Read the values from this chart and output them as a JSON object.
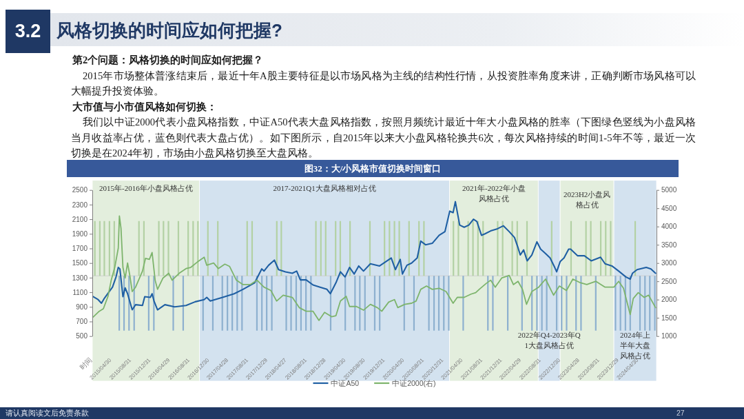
{
  "chart_data": {
    "type": "line",
    "title": "图32：大/小风格市值切换时间窗口",
    "annotations": [
      "3.2",
      "风格切换的时间应如何把握?",
      "第2个问题：风格切换的时间应如何把握？",
      "2015年市场整体普涨结束后，最近十年A股主要特征是以市场风格为主线的结构性行情，从投资胜率角度来讲，正确判断市场风格可以大幅提升投资体验。",
      "大市值与小市值风格如何切换：",
      "我们以中证2000代表小盘风格指数，中证A50代表大盘风格指数，按照月频统计最近十年大小盘风格的胜率（下图绿色竖线为小盘风格当月收益率占优，蓝色则代表大盘占优）。如下图所示，自2015年以来大小盘风格轮换共6次，每次风格持续的时间1-5年不等，最近一次切换是在2024年初，市场由小盘风格切换至大盘风格。",
      "请认真阅读文后免责条款",
      "27"
    ],
    "xlim": [
      "2014-12-31",
      "2024-08-20"
    ],
    "xticks": [
      {
        "value": "2014-12-31",
        "label": "时间"
      },
      {
        "value": "2015-04-30",
        "label": "2015/04/30"
      },
      {
        "value": "2015-08-31",
        "label": "2015/08/31"
      },
      {
        "value": "2015-12-31",
        "label": "2015/12/31"
      },
      {
        "value": "2016-04-29",
        "label": "2016/04/29"
      },
      {
        "value": "2016-08-31",
        "label": "2016/08/31"
      },
      {
        "value": "2016-12-30",
        "label": "2016/12/30"
      },
      {
        "value": "2017-04-28",
        "label": "2017/04/28"
      },
      {
        "value": "2017-08-31",
        "label": "2017/08/31"
      },
      {
        "value": "2017-12-29",
        "label": "2017/12/29"
      },
      {
        "value": "2018-04-27",
        "label": "2018/04/27"
      },
      {
        "value": "2018-08-31",
        "label": "2018/08/31"
      },
      {
        "value": "2018-12-28",
        "label": "2018/12/28"
      },
      {
        "value": "2019-04-30",
        "label": "2019/04/30"
      },
      {
        "value": "2019-08-30",
        "label": "2019/08/30"
      },
      {
        "value": "2019-12-31",
        "label": "2019/12/31"
      },
      {
        "value": "2020-04-30",
        "label": "2020/04/30"
      },
      {
        "value": "2020-08-31",
        "label": "2020/08/31"
      },
      {
        "value": "2020-12-31",
        "label": "2020/12/31"
      },
      {
        "value": "2021-04-30",
        "label": "2021/04/30"
      },
      {
        "value": "2021-08-31",
        "label": "2021/08/31"
      },
      {
        "value": "2021-12-31",
        "label": "2021/12/31"
      },
      {
        "value": "2022-04-29",
        "label": "2022/04/29"
      },
      {
        "value": "2022-08-31",
        "label": "2022/08/31"
      },
      {
        "value": "2022-12-30",
        "label": "2022/12/30"
      },
      {
        "value": "2023-04-28",
        "label": "2023/04/28"
      },
      {
        "value": "2023-08-31",
        "label": "2023/08/31"
      },
      {
        "value": "2023-12-29",
        "label": "2023/12/29"
      },
      {
        "value": "2024-04-30",
        "label": "2024/04/30"
      }
    ],
    "ylim": [
      500,
      2500
    ],
    "yticks": [
      500,
      700,
      900,
      1100,
      1300,
      1500,
      1700,
      1900,
      2100,
      2300,
      2500
    ],
    "y2lim": [
      1000,
      5000
    ],
    "y2ticks": [
      1000,
      1500,
      2000,
      2500,
      3000,
      3500,
      4000,
      4500,
      5000
    ],
    "legend": "bottom",
    "bands": [
      {
        "axis": "x",
        "from": "2014-12-31",
        "to": "2016-10-30",
        "label": "2015年-2016年小盘风格占优",
        "color": "#e3eedd"
      },
      {
        "axis": "x",
        "from": "2016-10-30",
        "to": "2021-02-06",
        "label": "2017-2021Q1大盘风格相对占优",
        "color": "#d3e2ef"
      },
      {
        "axis": "x",
        "from": "2021-02-06",
        "to": "2022-08-13",
        "label": "2021年-2022年小盘风格占优",
        "color": "#e3eedd"
      },
      {
        "axis": "x",
        "from": "2022-08-13",
        "to": "2022-12-28",
        "label": "2022年Q4-2023年Q1大盘风格占优",
        "color": "#d3e2ef"
      },
      {
        "axis": "x",
        "from": "2022-12-28",
        "to": "2023-11-28",
        "label": "2023H2小盘风格占优",
        "color": "#e3eedd"
      },
      {
        "axis": "x",
        "from": "2023-11-28",
        "to": "2024-08-20",
        "label": "2024年上半年大盘风格占优",
        "color": "#d3e2ef"
      }
    ],
    "ref_lines": [
      {
        "axis": "y",
        "value": 1325,
        "color": "#cfcfcf"
      }
    ],
    "series": [
      {
        "name": "中证A50",
        "color": "#1f5fa3",
        "axis": "y",
        "x": [
          "2015-01-05",
          "2015-02-05",
          "2015-02-26",
          "2015-03-17",
          "2015-05-06",
          "2015-05-28",
          "2015-06-11",
          "2015-06-21",
          "2015-07-10",
          "2015-07-24",
          "2015-08-08",
          "2015-09-06",
          "2015-09-27",
          "2015-11-09",
          "2015-11-23",
          "2015-12-28",
          "2016-01-08",
          "2016-01-20",
          "2016-02-11",
          "2016-03-28",
          "2016-05-27",
          "2016-08-07",
          "2016-10-03",
          "2016-11-28",
          "2016-12-14",
          "2017-01-05",
          "2017-03-23",
          "2017-06-03",
          "2017-07-28",
          "2017-10-09",
          "2017-11-22",
          "2017-12-06",
          "2018-01-04",
          "2018-02-09",
          "2018-03-07",
          "2018-04-19",
          "2018-06-01",
          "2018-06-28",
          "2018-07-21",
          "2018-08-26",
          "2018-10-08",
          "2018-11-21",
          "2019-01-03",
          "2019-01-24",
          "2019-02-28",
          "2019-03-28",
          "2019-04-26",
          "2019-05-24",
          "2019-06-22",
          "2019-07-20",
          "2019-08-19",
          "2019-10-01",
          "2019-11-27",
          "2020-02-08",
          "2020-03-05",
          "2020-04-04",
          "2020-04-18",
          "2020-05-16",
          "2020-06-14",
          "2020-07-19",
          "2020-08-10",
          "2020-09-09",
          "2020-10-21",
          "2020-12-03",
          "2021-01-08",
          "2021-02-07",
          "2021-02-28",
          "2021-03-14",
          "2021-04-10",
          "2021-05-08",
          "2021-06-06",
          "2021-07-05",
          "2021-07-26",
          "2021-08-24",
          "2021-09-15",
          "2021-10-20",
          "2021-12-02",
          "2022-01-08",
          "2022-02-13",
          "2022-03-18",
          "2022-04-09",
          "2022-04-23",
          "2022-05-14",
          "2022-06-05",
          "2022-07-04",
          "2022-08-05",
          "2022-08-28",
          "2022-09-28",
          "2022-10-26",
          "2022-11-24",
          "2022-12-06",
          "2022-12-28",
          "2023-01-21",
          "2023-02-19",
          "2023-03-03",
          "2023-04-15",
          "2023-05-28",
          "2023-07-10",
          "2023-09-06",
          "2023-10-04",
          "2023-11-16",
          "2023-12-28",
          "2024-02-11",
          "2024-03-09",
          "2024-03-23",
          "2024-04-21",
          "2024-06-17",
          "2024-07-16",
          "2024-08-14"
        ],
        "values": [
          1040,
          1000,
          950,
          1020,
          1170,
          1310,
          1440,
          1420,
          1040,
          1160,
          1080,
          860,
          930,
          920,
          1040,
          1030,
          1080,
          980,
          860,
          930,
          900,
          920,
          970,
          1000,
          1030,
          980,
          1030,
          1080,
          1140,
          1230,
          1420,
          1390,
          1470,
          1540,
          1410,
          1380,
          1360,
          1390,
          1270,
          1270,
          1200,
          1170,
          1140,
          1080,
          1230,
          1380,
          1310,
          1440,
          1350,
          1460,
          1390,
          1490,
          1460,
          1570,
          1410,
          1550,
          1350,
          1470,
          1500,
          1570,
          1800,
          1750,
          1770,
          1880,
          1930,
          2210,
          2190,
          2340,
          2020,
          1990,
          2020,
          2100,
          2070,
          1880,
          1900,
          1940,
          1970,
          2010,
          1930,
          1850,
          1710,
          1610,
          1680,
          1530,
          1610,
          1790,
          1690,
          1630,
          1570,
          1440,
          1380,
          1520,
          1570,
          1690,
          1690,
          1600,
          1600,
          1530,
          1580,
          1490,
          1460,
          1390,
          1310,
          1280,
          1360,
          1410,
          1440,
          1420,
          1360
        ]
      },
      {
        "name": "中证2000(右)",
        "color": "#7db46c",
        "axis": "y2",
        "x": [
          "2015-01-05",
          "2015-02-12",
          "2015-03-10",
          "2015-04-08",
          "2015-04-28",
          "2015-05-20",
          "2015-06-11",
          "2015-06-18",
          "2015-06-28",
          "2015-07-10",
          "2015-07-24",
          "2015-08-08",
          "2015-08-22",
          "2015-09-06",
          "2015-09-27",
          "2015-11-09",
          "2015-11-28",
          "2015-12-22",
          "2016-01-08",
          "2016-01-27",
          "2016-02-11",
          "2016-03-16",
          "2016-04-21",
          "2016-05-12",
          "2016-06-25",
          "2016-08-07",
          "2016-09-05",
          "2016-10-17",
          "2016-11-28",
          "2016-12-14",
          "2017-01-26",
          "2017-02-24",
          "2017-04-06",
          "2017-05-05",
          "2017-06-17",
          "2017-07-28",
          "2017-09-11",
          "2017-10-24",
          "2017-12-06",
          "2018-01-18",
          "2018-02-23",
          "2018-04-05",
          "2018-06-01",
          "2018-07-14",
          "2018-08-26",
          "2018-10-08",
          "2018-11-14",
          "2018-12-19",
          "2019-02-01",
          "2019-02-28",
          "2019-03-28",
          "2019-05-03",
          "2019-05-24",
          "2019-07-06",
          "2019-08-19",
          "2019-10-01",
          "2019-11-13",
          "2019-12-11",
          "2020-01-23",
          "2020-02-28",
          "2020-03-20",
          "2020-05-02",
          "2020-06-14",
          "2020-07-12",
          "2020-08-10",
          "2020-09-15",
          "2020-10-21",
          "2020-12-03",
          "2021-01-15",
          "2021-02-28",
          "2021-03-26",
          "2021-05-08",
          "2021-06-20",
          "2021-07-19",
          "2021-08-10",
          "2021-09-22",
          "2021-10-20",
          "2021-11-18",
          "2021-12-28",
          "2022-02-13",
          "2022-03-11",
          "2022-04-09",
          "2022-05-07",
          "2022-06-01",
          "2022-07-04",
          "2022-08-16",
          "2022-09-28",
          "2022-10-26",
          "2022-11-17",
          "2022-12-23",
          "2023-02-05",
          "2023-03-17",
          "2023-04-28",
          "2023-06-12",
          "2023-08-08",
          "2023-10-04",
          "2023-11-28",
          "2023-12-28",
          "2024-01-27",
          "2024-03-09",
          "2024-03-28",
          "2024-04-28",
          "2024-06-04",
          "2024-07-02",
          "2024-08-14"
        ],
        "values": [
          1520,
          1680,
          1750,
          2090,
          2530,
          2880,
          3410,
          4290,
          3950,
          2880,
          2590,
          3000,
          2660,
          2220,
          2340,
          2780,
          3130,
          3100,
          3290,
          2530,
          2280,
          2590,
          2720,
          2530,
          2720,
          2850,
          2880,
          3030,
          3160,
          2940,
          3000,
          2850,
          2970,
          2910,
          2530,
          2410,
          2410,
          2530,
          2340,
          2250,
          1960,
          2120,
          2060,
          1780,
          1680,
          1680,
          1430,
          1650,
          1530,
          1560,
          1960,
          2090,
          1810,
          1810,
          1710,
          1870,
          1780,
          1680,
          1930,
          2000,
          1780,
          1870,
          1900,
          1960,
          2280,
          2370,
          2280,
          2310,
          2220,
          1900,
          2060,
          2060,
          2150,
          2190,
          2280,
          2440,
          2530,
          2340,
          2590,
          2660,
          2410,
          2500,
          2280,
          1870,
          2220,
          2340,
          2560,
          2310,
          2120,
          2370,
          2250,
          2560,
          2470,
          2410,
          2500,
          2340,
          2340,
          2500,
          2310,
          1590,
          2030,
          2190,
          2060,
          2120,
          1780
        ]
      },
      {
        "type": "bar",
        "color": "#b3d1a4",
        "axis": "y",
        "x": [
          "2015-01-16",
          "2015-02-16",
          "2015-03-16",
          "2015-04-17",
          "2015-05-17",
          "2015-10-18",
          "2015-11-18",
          "2016-02-19",
          "2016-03-19",
          "2016-04-19",
          "2016-06-20",
          "2016-08-20",
          "2016-09-20",
          "2016-10-20",
          "2016-12-21",
          "2017-02-21",
          "2017-08-23",
          "2017-09-23",
          "2018-02-24",
          "2018-03-24",
          "2018-10-26",
          "2018-11-26",
          "2018-12-26",
          "2019-02-26",
          "2019-03-27",
          "2019-05-27",
          "2019-09-28",
          "2019-12-28",
          "2020-01-28",
          "2020-02-28",
          "2020-03-29",
          "2020-05-29",
          "2020-07-30",
          "2020-08-30",
          "2021-03-02",
          "2021-04-02",
          "2021-06-02",
          "2021-07-02",
          "2021-08-02",
          "2021-09-03",
          "2021-12-03",
          "2022-01-03",
          "2022-03-04",
          "2022-04-04",
          "2022-06-04",
          "2022-11-05",
          "2023-03-06",
          "2023-06-07",
          "2023-07-07",
          "2023-09-07",
          "2023-10-08",
          "2023-11-08",
          "2024-04-09"
        ],
        "values": [
          750,
          750,
          750,
          750,
          750,
          750,
          750,
          750,
          750,
          750,
          750,
          750,
          750,
          750,
          750,
          750,
          750,
          750,
          750,
          750,
          750,
          750,
          750,
          750,
          750,
          750,
          750,
          750,
          750,
          750,
          750,
          750,
          750,
          750,
          750,
          750,
          750,
          750,
          750,
          750,
          750,
          750,
          750,
          750,
          750,
          750,
          750,
          750,
          750,
          750,
          750,
          750,
          750
        ],
        "base": [
          1325,
          1325,
          1325,
          1325,
          1325,
          1325,
          1325,
          1325,
          1325,
          1325,
          1325,
          1325,
          1325,
          1325,
          1325,
          1325,
          1325,
          1325,
          1325,
          1325,
          1325,
          1325,
          1325,
          1325,
          1325,
          1325,
          1325,
          1325,
          1325,
          1325,
          1325,
          1325,
          1325,
          1325,
          1325,
          1325,
          1325,
          1325,
          1325,
          1325,
          1325,
          1325,
          1325,
          1325,
          1325,
          1325,
          1325,
          1325,
          1325,
          1325,
          1325,
          1325,
          1325
        ]
      },
      {
        "type": "bar",
        "color": "#8db0cf",
        "axis": "y",
        "x": [
          "2015-06-17",
          "2015-07-17",
          "2015-08-17",
          "2015-09-18",
          "2015-12-18",
          "2016-01-19",
          "2016-05-19",
          "2016-07-20",
          "2016-11-21",
          "2017-01-21",
          "2017-03-21",
          "2017-04-22",
          "2017-05-22",
          "2017-06-22",
          "2017-07-22",
          "2017-10-23",
          "2017-11-23",
          "2017-12-23",
          "2018-01-24",
          "2018-04-24",
          "2018-05-24",
          "2018-06-25",
          "2018-07-25",
          "2018-08-25",
          "2018-09-25",
          "2019-01-26",
          "2019-04-27",
          "2019-06-27",
          "2019-07-27",
          "2019-08-28",
          "2019-10-28",
          "2019-11-28",
          "2020-04-29",
          "2020-06-29",
          "2020-09-30",
          "2020-11-01",
          "2020-12-01",
          "2021-01-01",
          "2021-02-01",
          "2021-05-02",
          "2021-10-03",
          "2021-11-03",
          "2022-02-04",
          "2022-05-04",
          "2022-07-05",
          "2022-08-05",
          "2022-09-05",
          "2022-10-05",
          "2022-12-06",
          "2023-01-06",
          "2023-02-06",
          "2023-04-06",
          "2023-05-07",
          "2023-08-07",
          "2023-12-08",
          "2024-01-08",
          "2024-02-08",
          "2024-03-09",
          "2024-05-09",
          "2024-06-09",
          "2024-07-09",
          "2024-08-10"
        ],
        "values": [
          -750,
          -750,
          -750,
          -750,
          -750,
          -750,
          -750,
          -750,
          -750,
          -750,
          -750,
          -750,
          -750,
          -750,
          -750,
          -750,
          -750,
          -750,
          -750,
          -750,
          -750,
          -750,
          -750,
          -750,
          -750,
          -750,
          -750,
          -750,
          -750,
          -750,
          -750,
          -750,
          -750,
          -750,
          -750,
          -750,
          -750,
          -750,
          -750,
          -750,
          -750,
          -750,
          -750,
          -750,
          -750,
          -750,
          -750,
          -750,
          -750,
          -750,
          -750,
          -750,
          -750,
          -750,
          -750,
          -750,
          -750,
          -750,
          -750,
          -750,
          -750,
          -750
        ],
        "base": [
          1325,
          1325,
          1325,
          1325,
          1325,
          1325,
          1325,
          1325,
          1325,
          1325,
          1325,
          1325,
          1325,
          1325,
          1325,
          1325,
          1325,
          1325,
          1325,
          1325,
          1325,
          1325,
          1325,
          1325,
          1325,
          1325,
          1325,
          1325,
          1325,
          1325,
          1325,
          1325,
          1325,
          1325,
          1325,
          1325,
          1325,
          1325,
          1325,
          1325,
          1325,
          1325,
          1325,
          1325,
          1325,
          1325,
          1325,
          1325,
          1325,
          1325,
          1325,
          1325,
          1325,
          1325,
          1325,
          1325,
          1325,
          1325,
          1325,
          1325,
          1325,
          1325
        ]
      }
    ]
  }
}
